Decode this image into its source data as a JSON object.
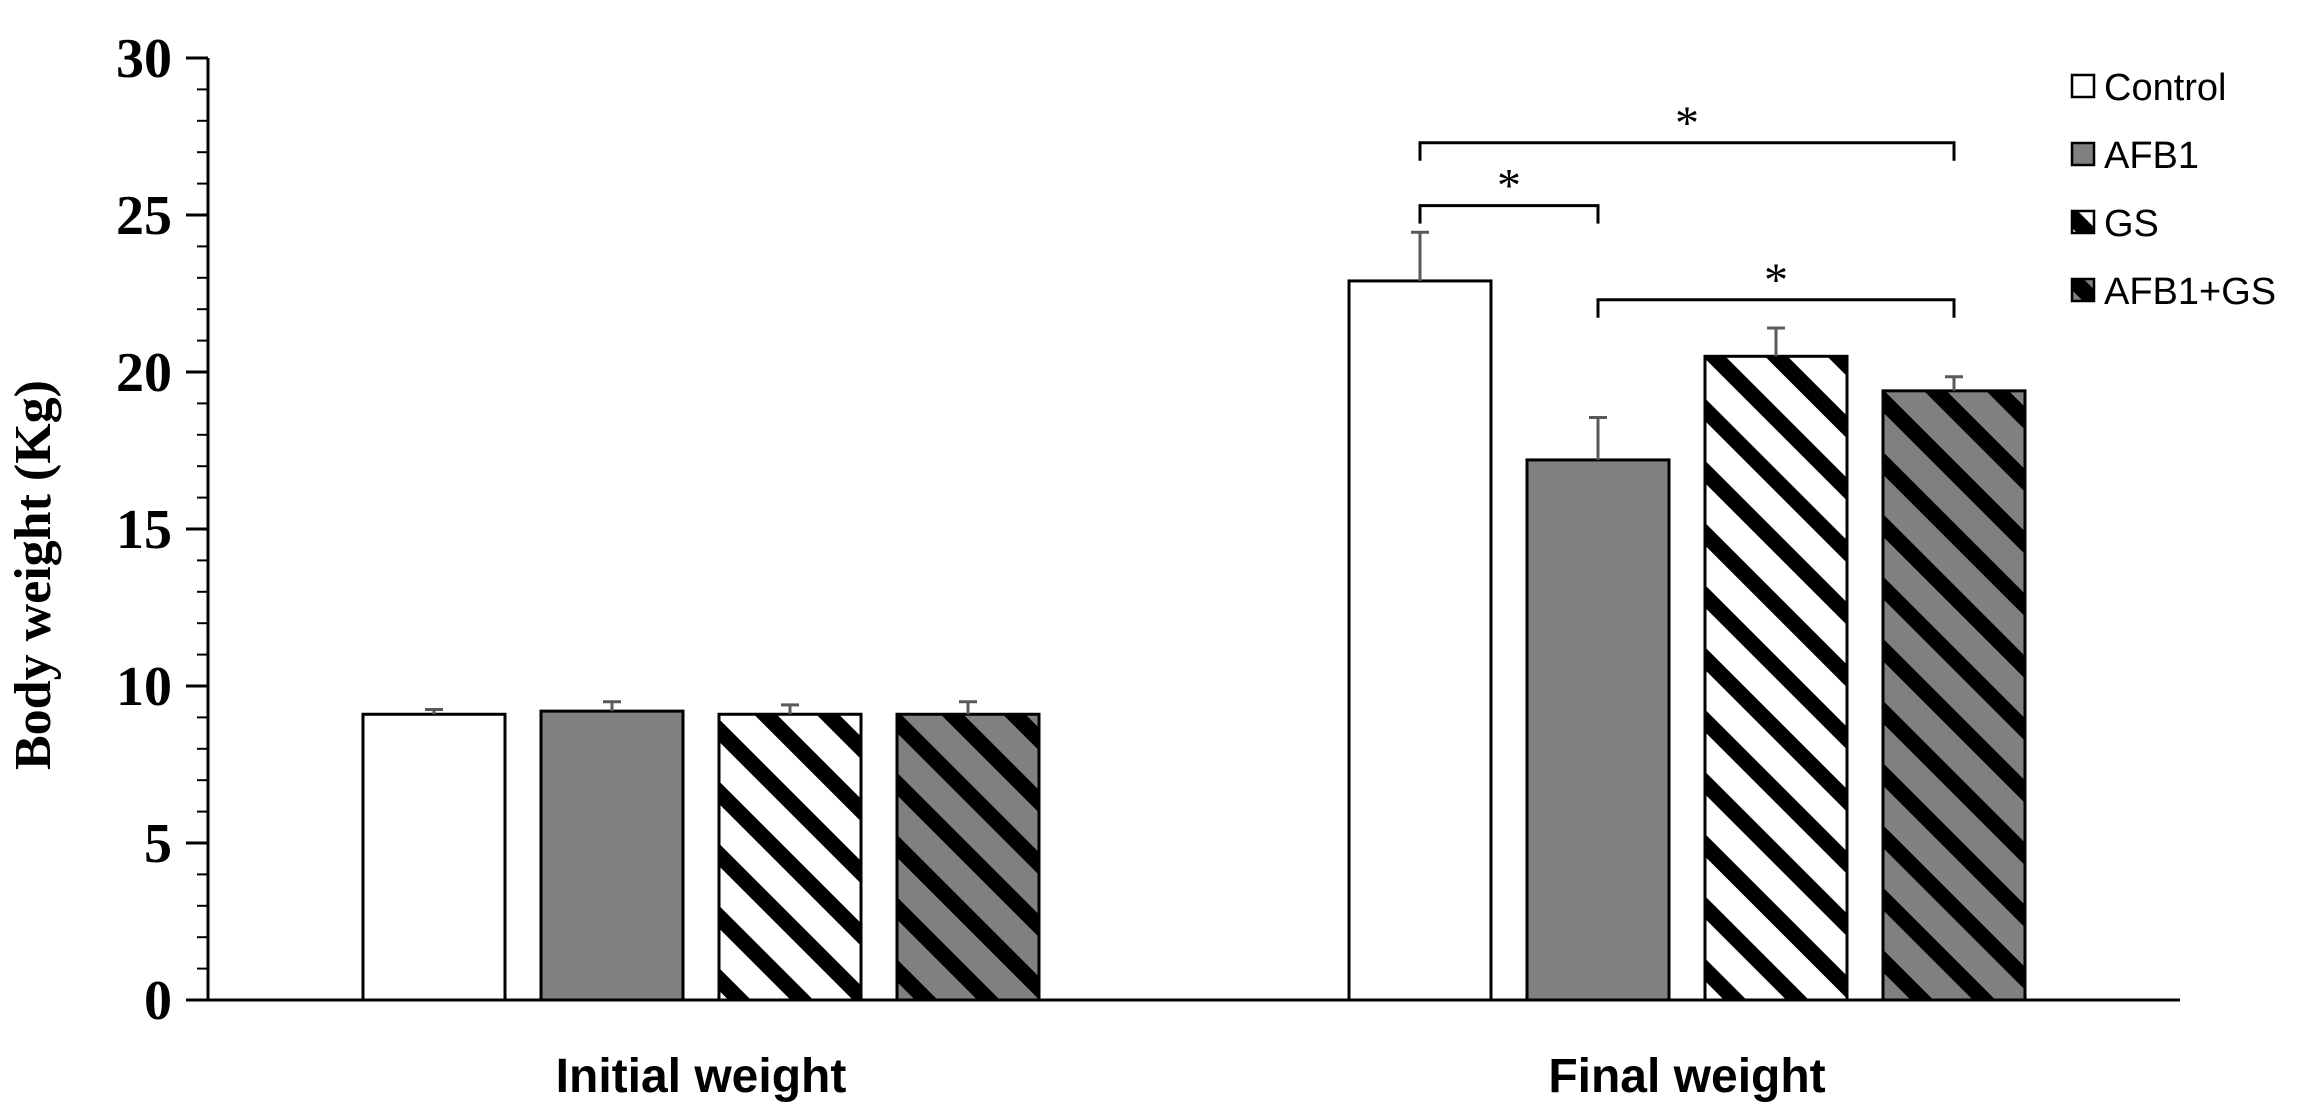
{
  "chart_data": {
    "type": "bar",
    "title": "",
    "xlabel": "",
    "ylabel": "Body weight (Kg)",
    "ylim": [
      0,
      30
    ],
    "yticks": [
      0,
      5,
      10,
      15,
      20,
      25,
      30
    ],
    "ytick_labels": [
      "0",
      "5",
      "10",
      "15",
      "20",
      "25",
      "30"
    ],
    "categories": [
      "Initial weight",
      "Final weight"
    ],
    "series": [
      {
        "name": "Control",
        "pattern": "solid",
        "color": "#ffffff",
        "values": [
          9.1,
          22.9
        ],
        "errors": [
          0.15,
          1.55
        ]
      },
      {
        "name": "AFB1",
        "pattern": "solid",
        "color": "#808080",
        "values": [
          9.2,
          17.2
        ],
        "errors": [
          0.3,
          1.35
        ]
      },
      {
        "name": "GS",
        "pattern": "stripe-white",
        "color": "#ffffff",
        "values": [
          9.1,
          20.5
        ],
        "errors": [
          0.3,
          0.9
        ]
      },
      {
        "name": "AFB1+GS",
        "pattern": "stripe-gray",
        "color": "#808080",
        "values": [
          9.1,
          19.4
        ],
        "errors": [
          0.4,
          0.45
        ]
      }
    ],
    "significance": [
      {
        "category": 1,
        "from": 0,
        "to": 1,
        "y": 25.3,
        "label": "*"
      },
      {
        "category": 1,
        "from": 0,
        "to": 3,
        "y": 27.3,
        "label": "*"
      },
      {
        "category": 1,
        "from": 1,
        "to": 3,
        "y": 22.3,
        "label": "*"
      }
    ],
    "legend": {
      "position": "top-right",
      "entries": [
        "Control",
        "AFB1",
        "GS",
        "AFB1+GS"
      ]
    },
    "grid": false
  }
}
